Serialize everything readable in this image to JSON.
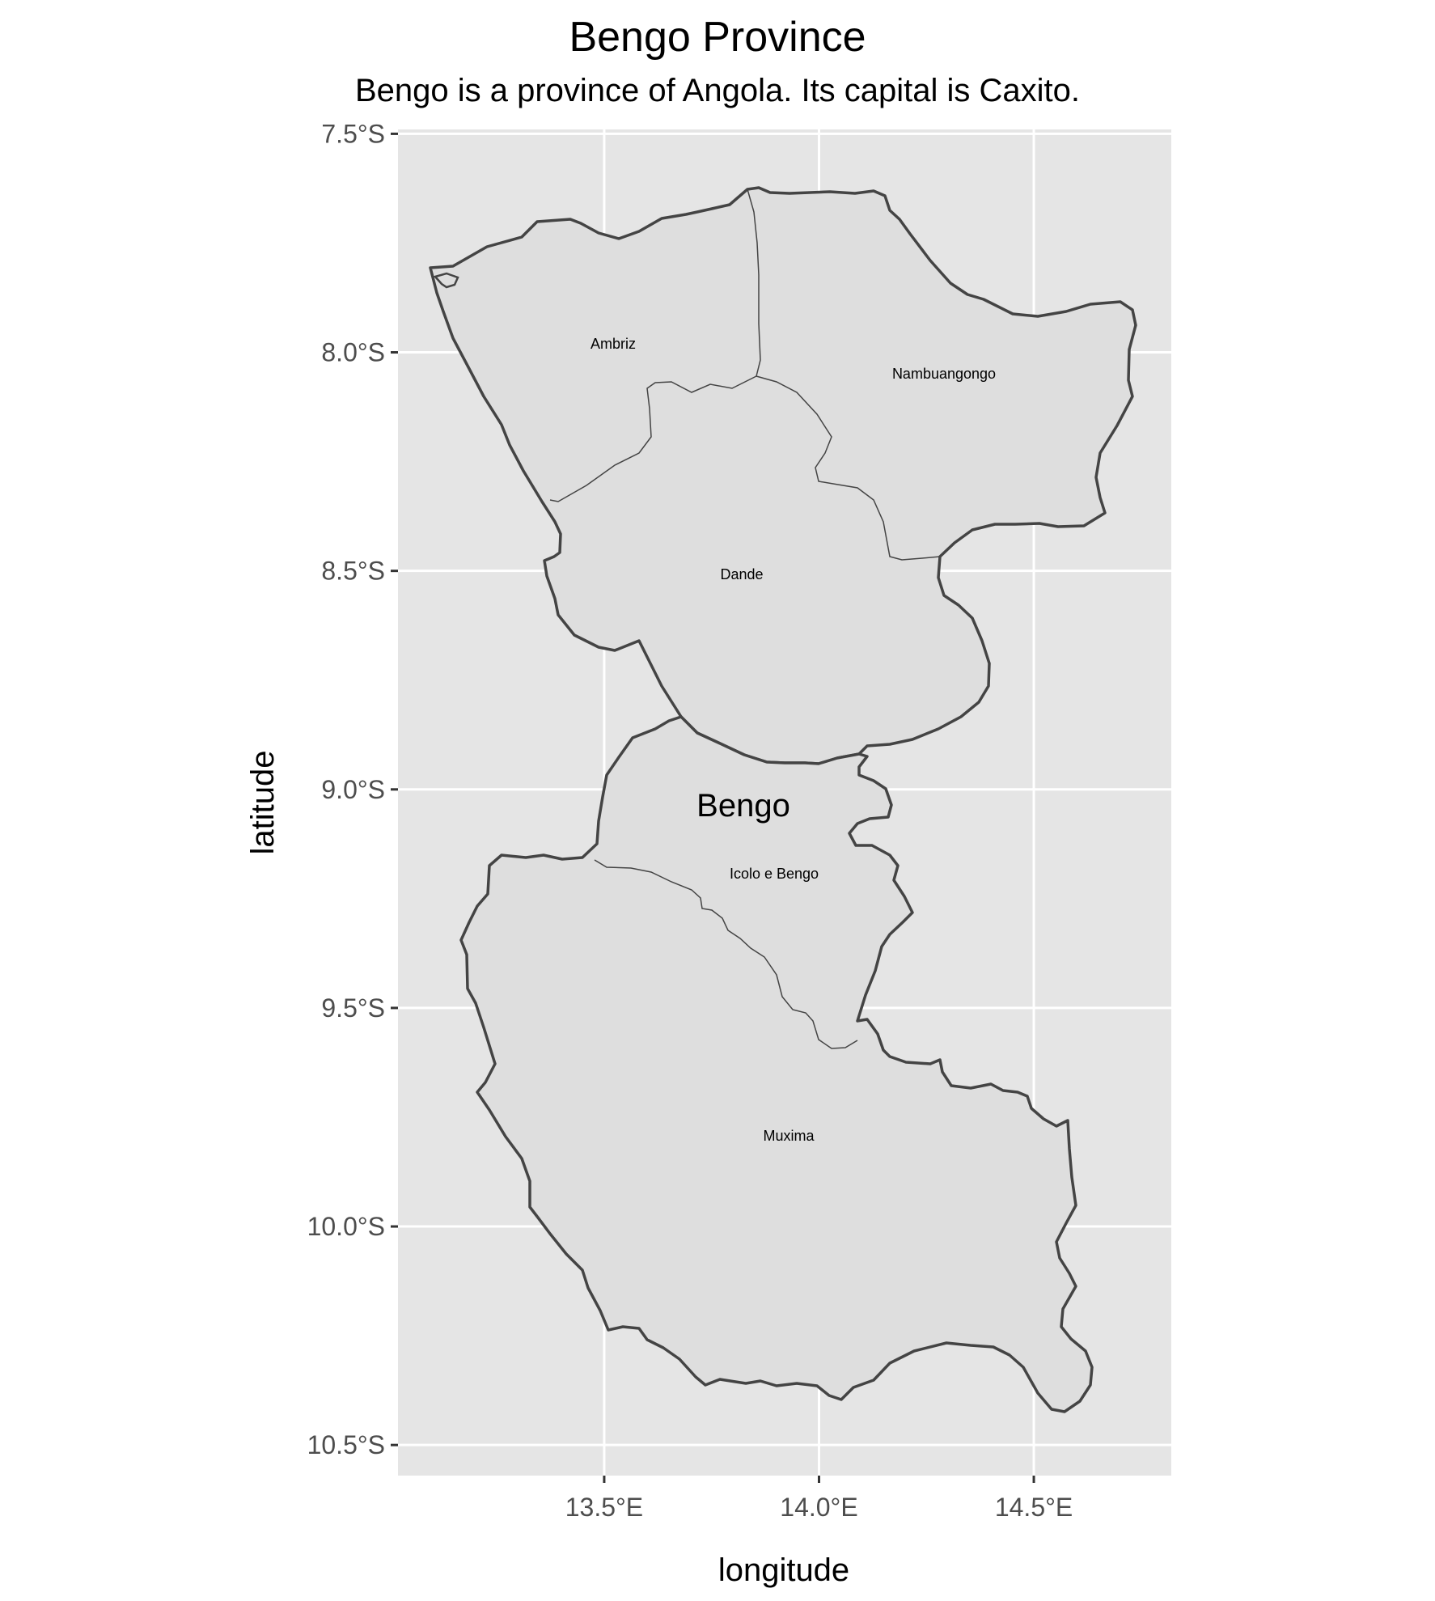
{
  "title": "Bengo Province",
  "subtitle": "Bengo is a province of Angola. Its capital is Caxito.",
  "map": {
    "xlabel": "longitude",
    "ylabel": "latitude",
    "xlim": [
      13.02,
      14.82
    ],
    "ylim": [
      -10.57,
      -7.49
    ],
    "x_ticks": [
      {
        "value": 13.5,
        "label": "13.5°E"
      },
      {
        "value": 14.0,
        "label": "14.0°E"
      },
      {
        "value": 14.5,
        "label": "14.5°E"
      }
    ],
    "y_ticks": [
      {
        "value": -7.5,
        "label": "7.5°S"
      },
      {
        "value": -8.0,
        "label": "8.0°S"
      },
      {
        "value": -8.5,
        "label": "8.5°S"
      },
      {
        "value": -9.0,
        "label": "9.0°S"
      },
      {
        "value": -9.5,
        "label": "9.5°S"
      },
      {
        "value": -10.0,
        "label": "10.0°S"
      },
      {
        "value": -10.5,
        "label": "10.5°S"
      }
    ],
    "grid": true,
    "colors": {
      "panel_background": "#e5e5e5",
      "grid": "#ffffff",
      "region_fill": "#dedede",
      "boundary": "#444444",
      "text": "#000000",
      "axis_text": "#4d4d4d"
    },
    "province_label": {
      "text": "Bengo",
      "lon": 13.75,
      "lat": -9.04
    },
    "municipalities": [
      {
        "name": "Ambriz",
        "lon": 13.45,
        "lat": -7.98
      },
      {
        "name": "Nambuangongo",
        "lon": 14.28,
        "lat": -8.05
      },
      {
        "name": "Dande",
        "lon": 13.78,
        "lat": -8.51
      },
      {
        "name": "Icolo e Bengo",
        "lon": 13.88,
        "lat": -9.19
      },
      {
        "name": "Muxima",
        "lon": 13.92,
        "lat": -9.79
      }
    ]
  }
}
